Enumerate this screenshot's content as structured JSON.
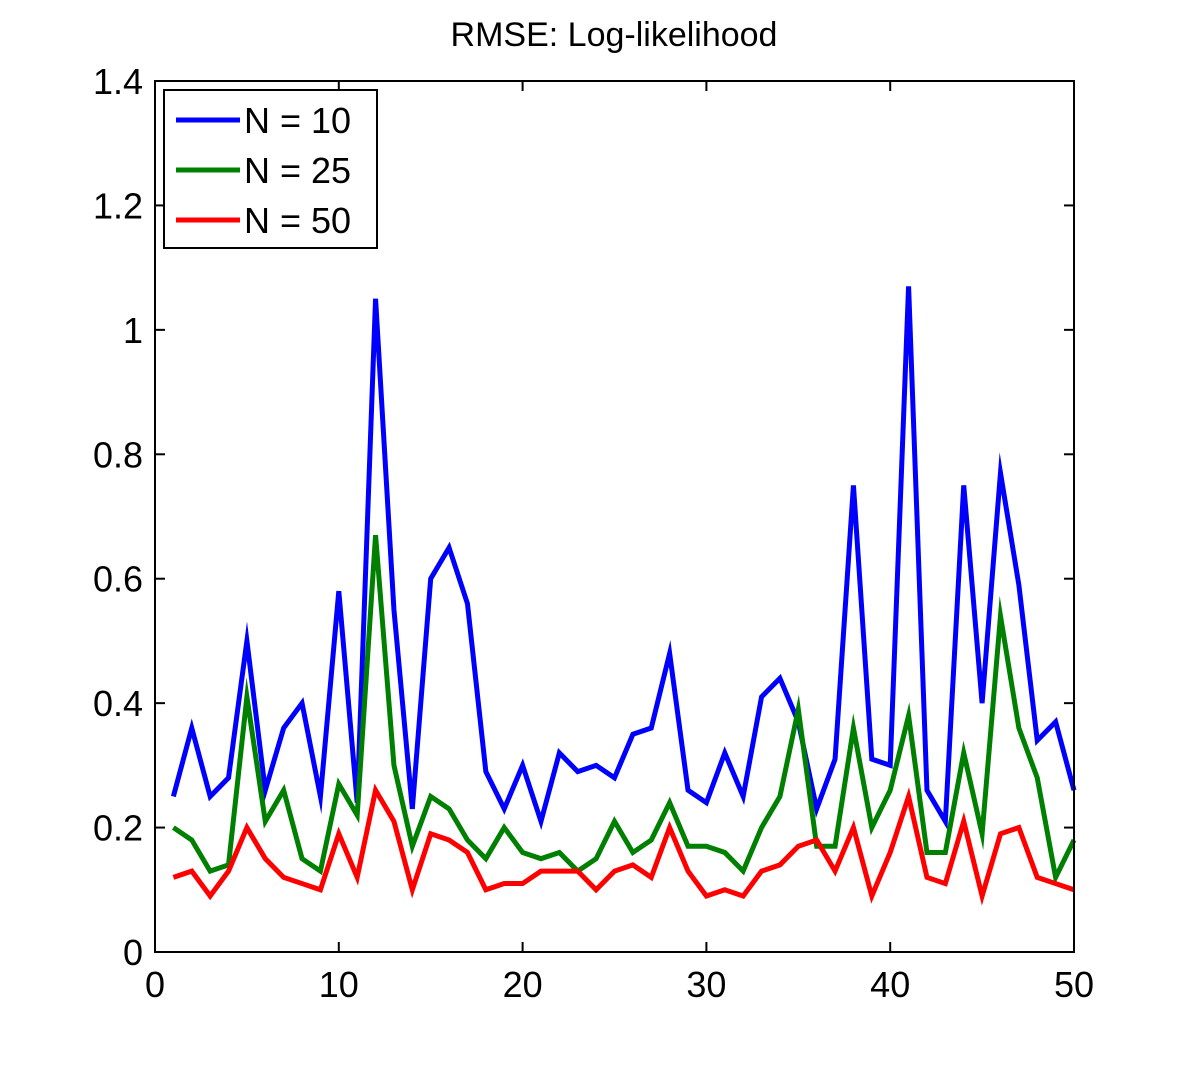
{
  "chart_data": {
    "type": "line",
    "title": "RMSE: Log-likelihood",
    "xlabel": "",
    "ylabel": "",
    "xlim": [
      0,
      50
    ],
    "ylim": [
      0,
      1.4
    ],
    "xticks": [
      0,
      10,
      20,
      30,
      40,
      50
    ],
    "yticks": [
      0,
      0.2,
      0.4,
      0.6,
      0.8,
      1,
      1.2,
      1.4
    ],
    "xtick_labels": [
      "0",
      "10",
      "20",
      "30",
      "40",
      "50"
    ],
    "ytick_labels": [
      "0",
      "0.2",
      "0.4",
      "0.6",
      "0.8",
      "1",
      "1.2",
      "1.4"
    ],
    "grid": false,
    "legend_position": "top-left",
    "x": [
      1,
      2,
      3,
      4,
      5,
      6,
      7,
      8,
      9,
      10,
      11,
      12,
      13,
      14,
      15,
      16,
      17,
      18,
      19,
      20,
      21,
      22,
      23,
      24,
      25,
      26,
      27,
      28,
      29,
      30,
      31,
      32,
      33,
      34,
      35,
      36,
      37,
      38,
      39,
      40,
      41,
      42,
      43,
      44,
      45,
      46,
      47,
      48,
      49,
      50
    ],
    "series": [
      {
        "name": "N = 10",
        "color": "#0000ff",
        "values": [
          0.25,
          0.36,
          0.25,
          0.28,
          0.5,
          0.26,
          0.36,
          0.4,
          0.25,
          0.58,
          0.24,
          1.05,
          0.55,
          0.23,
          0.6,
          0.65,
          0.56,
          0.29,
          0.23,
          0.3,
          0.21,
          0.32,
          0.29,
          0.3,
          0.28,
          0.35,
          0.36,
          0.48,
          0.26,
          0.24,
          0.32,
          0.25,
          0.41,
          0.44,
          0.37,
          0.23,
          0.31,
          0.75,
          0.31,
          0.3,
          1.07,
          0.26,
          0.21,
          0.75,
          0.4,
          0.77,
          0.59,
          0.34,
          0.37,
          0.26
        ]
      },
      {
        "name": "N = 25",
        "color": "#008000",
        "values": [
          0.2,
          0.18,
          0.13,
          0.14,
          0.41,
          0.21,
          0.26,
          0.15,
          0.13,
          0.27,
          0.22,
          0.67,
          0.3,
          0.17,
          0.25,
          0.23,
          0.18,
          0.15,
          0.2,
          0.16,
          0.15,
          0.16,
          0.13,
          0.15,
          0.21,
          0.16,
          0.18,
          0.24,
          0.17,
          0.17,
          0.16,
          0.13,
          0.2,
          0.25,
          0.39,
          0.17,
          0.17,
          0.36,
          0.2,
          0.26,
          0.38,
          0.16,
          0.16,
          0.32,
          0.19,
          0.54,
          0.36,
          0.28,
          0.12,
          0.18
        ]
      },
      {
        "name": "N = 50",
        "color": "#ff0000",
        "values": [
          0.12,
          0.13,
          0.09,
          0.13,
          0.2,
          0.15,
          0.12,
          0.11,
          0.1,
          0.19,
          0.12,
          0.26,
          0.21,
          0.1,
          0.19,
          0.18,
          0.16,
          0.1,
          0.11,
          0.11,
          0.13,
          0.13,
          0.13,
          0.1,
          0.13,
          0.14,
          0.12,
          0.2,
          0.13,
          0.09,
          0.1,
          0.09,
          0.13,
          0.14,
          0.17,
          0.18,
          0.13,
          0.2,
          0.09,
          0.16,
          0.25,
          0.12,
          0.11,
          0.21,
          0.09,
          0.19,
          0.2,
          0.12,
          0.11,
          0.1
        ]
      }
    ]
  }
}
